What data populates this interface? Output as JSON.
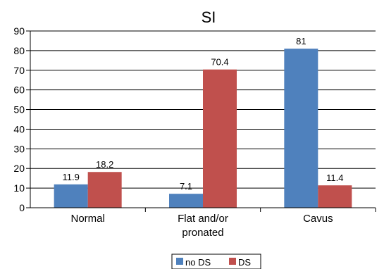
{
  "chart_data": {
    "type": "bar",
    "title": "SI",
    "categories": [
      [
        "Normal"
      ],
      [
        "Flat and/or",
        "pronated"
      ],
      [
        "Cavus"
      ]
    ],
    "series": [
      {
        "name": "no DS",
        "values": [
          11.9,
          7.1,
          81
        ],
        "labels": [
          "11.9",
          "7.1",
          "81"
        ],
        "color": "#4F81BD"
      },
      {
        "name": "DS",
        "values": [
          18.2,
          70.4,
          11.4
        ],
        "labels": [
          "18.2",
          "70.4",
          "11.4"
        ],
        "color": "#C0504D"
      }
    ],
    "ylim": [
      0,
      90
    ],
    "yticks": [
      0,
      10,
      20,
      30,
      40,
      50,
      60,
      70,
      80,
      90
    ],
    "ytick_labels": [
      "0",
      "10",
      "20",
      "30",
      "40",
      "50",
      "60",
      "70",
      "80",
      "90"
    ],
    "grid": true,
    "legend": "bottom"
  }
}
